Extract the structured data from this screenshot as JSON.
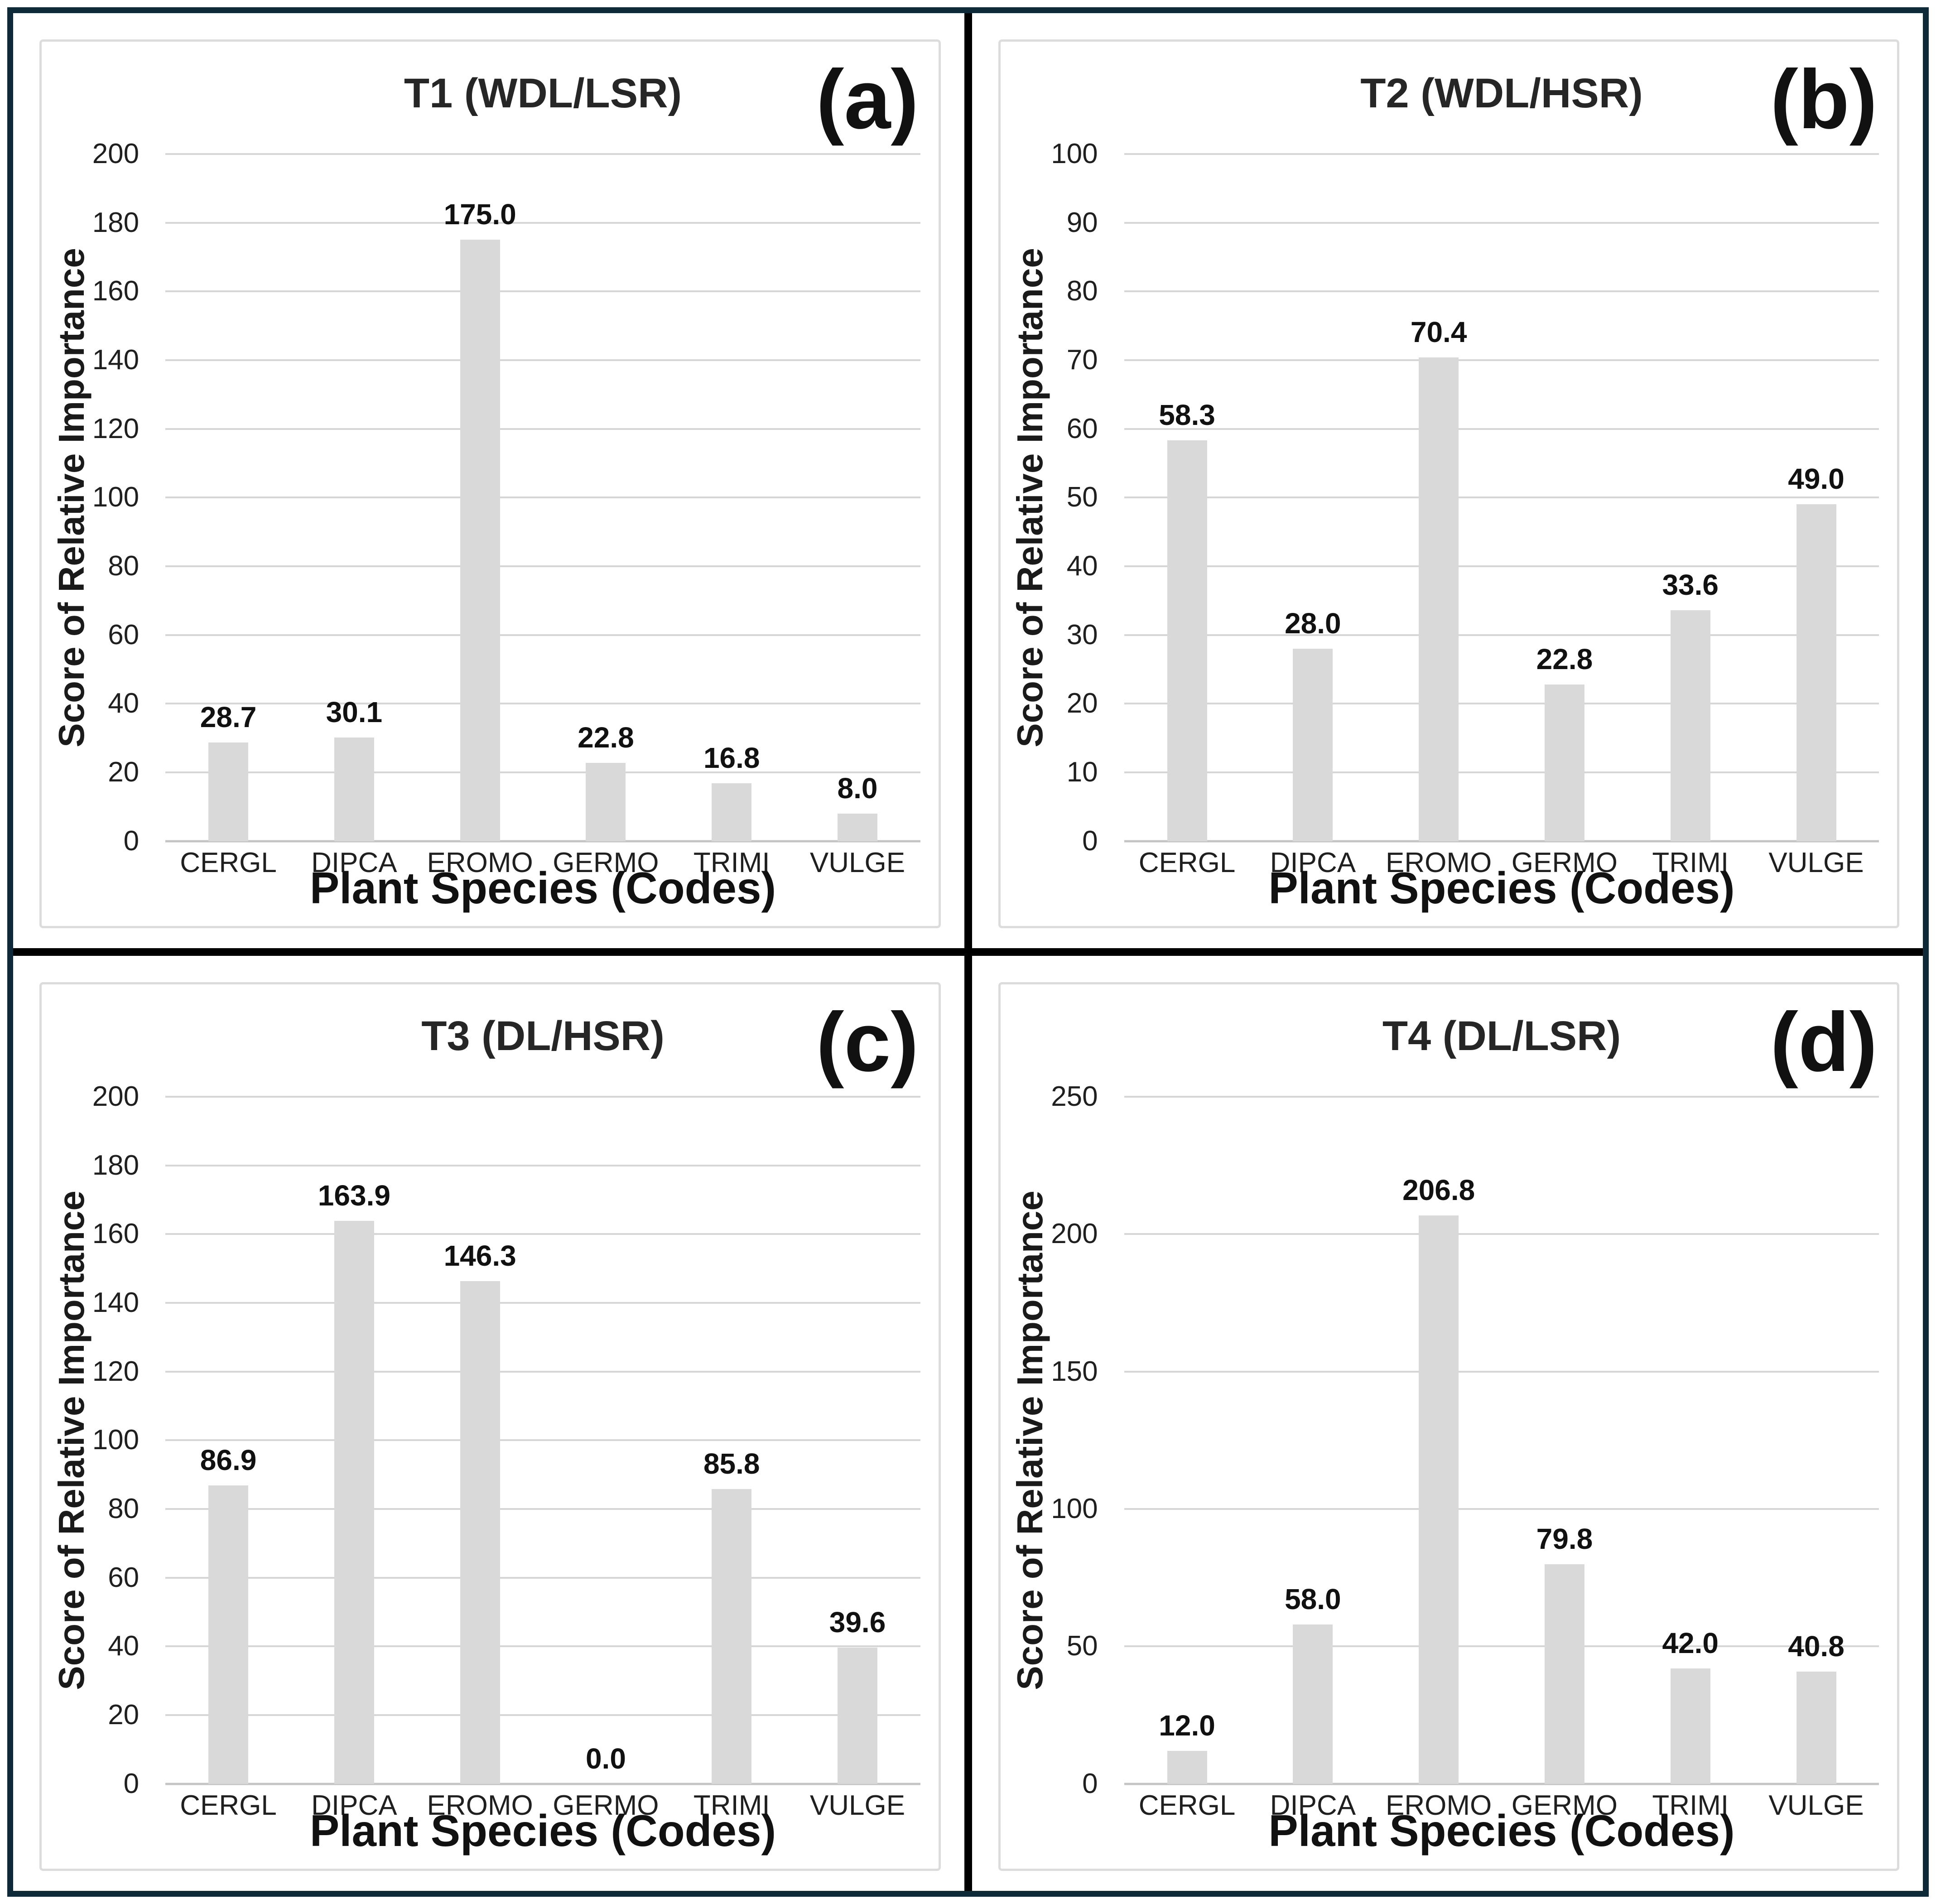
{
  "figure": {
    "outer_border_color": "#0e2a38",
    "divider_color": "#000000",
    "panel_background": "#ffffff",
    "box_border_color": "#dcdcdc",
    "bar_color": "#d9d9d9",
    "gridline_color": "#d6d6d6",
    "baseline_color": "#c4c4c4",
    "text_color": "#1a1a1a"
  },
  "chart_data": [
    {
      "type": "bar",
      "panel_letter": "(a)",
      "title": "T1 (WDL/LSR)",
      "xlabel": "Plant Species (Codes)",
      "ylabel": "Score of Relative Importance",
      "categories": [
        "CERGL",
        "DIPCA",
        "EROMO",
        "GERMO",
        "TRIMI",
        "VULGE"
      ],
      "values": [
        28.7,
        30.1,
        175.0,
        22.8,
        16.8,
        8.0
      ],
      "value_labels": [
        "28.7",
        "30.1",
        "175.0",
        "22.8",
        "16.8",
        "8.0"
      ],
      "ylim": [
        0,
        200
      ],
      "yticks": [
        0,
        20,
        40,
        60,
        80,
        100,
        120,
        140,
        160,
        180,
        200
      ],
      "grid": true,
      "legend": "none"
    },
    {
      "type": "bar",
      "panel_letter": "(b)",
      "title": "T2 (WDL/HSR)",
      "xlabel": "Plant Species (Codes)",
      "ylabel": "Score of Relative Importance",
      "categories": [
        "CERGL",
        "DIPCA",
        "EROMO",
        "GERMO",
        "TRIMI",
        "VULGE"
      ],
      "values": [
        58.3,
        28.0,
        70.4,
        22.8,
        33.6,
        49.0
      ],
      "value_labels": [
        "58.3",
        "28.0",
        "70.4",
        "22.8",
        "33.6",
        "49.0"
      ],
      "ylim": [
        0,
        100
      ],
      "yticks": [
        0,
        10,
        20,
        30,
        40,
        50,
        60,
        70,
        80,
        90,
        100
      ],
      "grid": true,
      "legend": "none"
    },
    {
      "type": "bar",
      "panel_letter": "(c)",
      "title": "T3 (DL/HSR)",
      "xlabel": "Plant Species (Codes)",
      "ylabel": "Score of Relative Importance",
      "categories": [
        "CERGL",
        "DIPCA",
        "EROMO",
        "GERMO",
        "TRIMI",
        "VULGE"
      ],
      "values": [
        86.9,
        163.9,
        146.3,
        0.0,
        85.8,
        39.6
      ],
      "value_labels": [
        "86.9",
        "163.9",
        "146.3",
        "0.0",
        "85.8",
        "39.6"
      ],
      "ylim": [
        0,
        200
      ],
      "yticks": [
        0,
        20,
        40,
        60,
        80,
        100,
        120,
        140,
        160,
        180,
        200
      ],
      "grid": true,
      "legend": "none"
    },
    {
      "type": "bar",
      "panel_letter": "(d)",
      "title": "T4 (DL/LSR)",
      "xlabel": "Plant Species (Codes)",
      "ylabel": "Score of Relative Importance",
      "categories": [
        "CERGL",
        "DIPCA",
        "EROMO",
        "GERMO",
        "TRIMI",
        "VULGE"
      ],
      "values": [
        12.0,
        58.0,
        206.8,
        79.8,
        42.0,
        40.8
      ],
      "value_labels": [
        "12.0",
        "58.0",
        "206.8",
        "79.8",
        "42.0",
        "40.8"
      ],
      "ylim": [
        0,
        250
      ],
      "yticks": [
        0,
        50,
        100,
        150,
        200,
        250
      ],
      "grid": true,
      "legend": "none"
    }
  ]
}
